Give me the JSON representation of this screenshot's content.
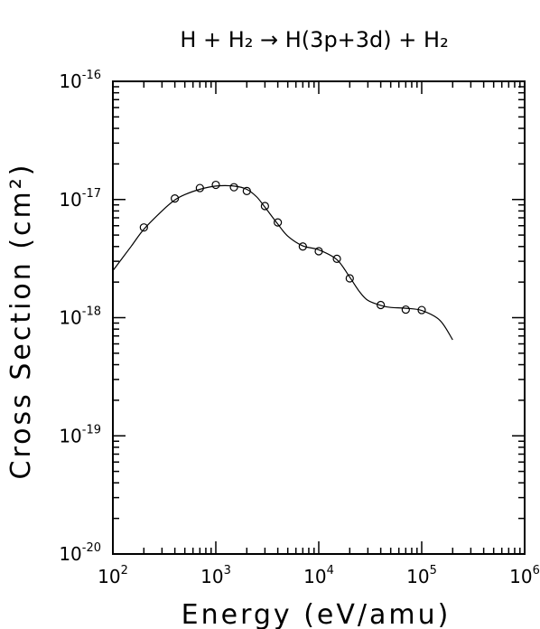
{
  "chart_data": {
    "type": "line",
    "title": "H + H₂ → H(3p+3d) + H₂",
    "xlabel": "Energy (eV/amu)",
    "ylabel": "Cross Section (cm²)",
    "xscale": "log",
    "yscale": "log",
    "xlim": [
      100,
      1000000
    ],
    "ylim": [
      1e-20,
      1e-16
    ],
    "x_ticks": [
      {
        "base": "10",
        "exp": "2",
        "value": 100
      },
      {
        "base": "10",
        "exp": "3",
        "value": 1000
      },
      {
        "base": "10",
        "exp": "4",
        "value": 10000
      },
      {
        "base": "10",
        "exp": "5",
        "value": 100000
      },
      {
        "base": "10",
        "exp": "6",
        "value": 1000000
      }
    ],
    "y_ticks": [
      {
        "base": "10",
        "exp": "-20",
        "value": 1e-20
      },
      {
        "base": "10",
        "exp": "-19",
        "value": 1e-19
      },
      {
        "base": "10",
        "exp": "-18",
        "value": 1e-18
      },
      {
        "base": "10",
        "exp": "-17",
        "value": 1e-17
      },
      {
        "base": "10",
        "exp": "-16",
        "value": 1e-16
      }
    ],
    "grid": false,
    "series": [
      {
        "style": "circles",
        "x": [
          200,
          400,
          700,
          1000,
          1500,
          2000,
          3000,
          4000,
          7000,
          10000,
          15000,
          20000,
          40000,
          70000,
          100000
        ],
        "y": [
          5.8e-18,
          1.02e-17,
          1.25e-17,
          1.33e-17,
          1.27e-17,
          1.18e-17,
          8.8e-18,
          6.4e-18,
          4e-18,
          3.65e-18,
          3.15e-18,
          2.15e-18,
          1.28e-18,
          1.17e-18,
          1.16e-18
        ]
      },
      {
        "style": "line",
        "x": [
          100,
          150,
          200,
          300,
          400,
          500,
          700,
          1000,
          1500,
          2000,
          2500,
          3000,
          4000,
          5000,
          7000,
          10000,
          15000,
          20000,
          25000,
          30000,
          40000,
          50000,
          70000,
          100000,
          150000,
          200000
        ],
        "y": [
          2.5e-18,
          4e-18,
          5.6e-18,
          8e-18,
          9.9e-18,
          1.1e-17,
          1.22e-17,
          1.3e-17,
          1.3e-17,
          1.22e-17,
          1.05e-17,
          8.6e-18,
          6.2e-18,
          4.9e-18,
          4.05e-18,
          3.75e-18,
          3.1e-18,
          2.2e-18,
          1.65e-18,
          1.4e-18,
          1.27e-18,
          1.22e-18,
          1.2e-18,
          1.15e-18,
          9.5e-19,
          6.5e-19
        ]
      }
    ]
  }
}
